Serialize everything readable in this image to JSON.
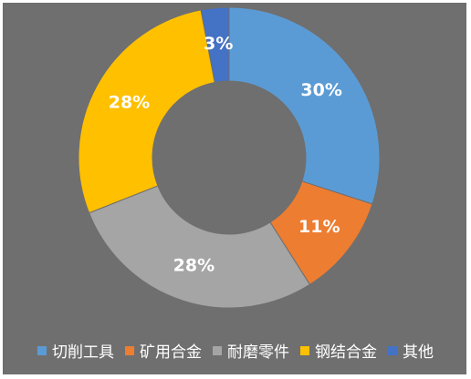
{
  "chart_data": {
    "type": "donut",
    "categories": [
      "切削工具",
      "矿用合金",
      "耐磨零件",
      "钢结合金",
      "其他"
    ],
    "values": [
      30,
      11,
      28,
      28,
      3
    ],
    "value_labels": [
      "30%",
      "11%",
      "28%",
      "28%",
      "3%"
    ],
    "colors": [
      "#5b9bd5",
      "#ed7d31",
      "#a5a5a5",
      "#ffc000",
      "#4472c4"
    ],
    "legend": "bottom"
  }
}
